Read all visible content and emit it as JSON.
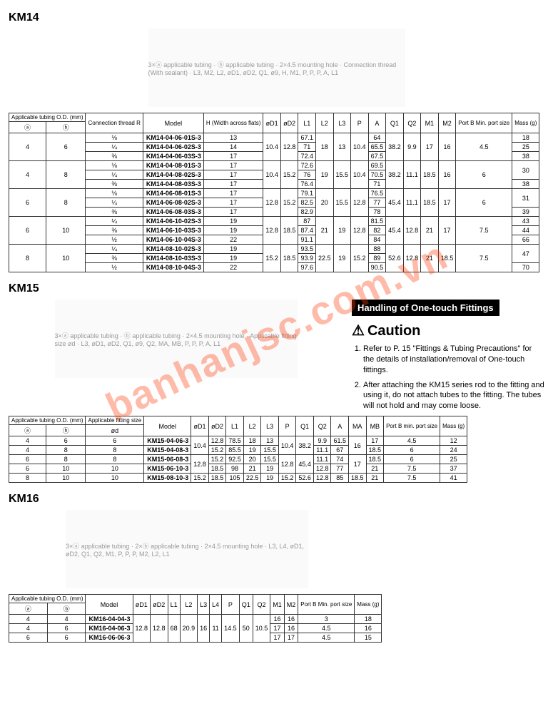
{
  "watermark": "banhanjsc.com.vn",
  "km14": {
    "title": "KM14",
    "diagram_labels": "3×ⓐ applicable tubing · ⓑ applicable tubing · 2×4.5 mounting hole · Connection thread (With sealant) · L3, M2, L2, øD1, øD2, Q1, ø9, H, M1, P, P, P, A, L1",
    "headers": {
      "tubing": "Applicable tubing O.D. (mm)",
      "a": "ⓐ",
      "b": "ⓑ",
      "conn": "Connection thread R",
      "model": "Model",
      "H": "H (Width across flats)",
      "D1": "øD1",
      "D2": "øD2",
      "L1": "L1",
      "L2": "L2",
      "L3": "L3",
      "P": "P",
      "A": "A",
      "Q1": "Q1",
      "Q2": "Q2",
      "M1": "M1",
      "M2": "M2",
      "portB": "Port B Min. port size",
      "mass": "Mass (g)"
    },
    "groups": [
      {
        "a": "4",
        "b": "6",
        "shared": {
          "D1": "10.4",
          "D2": "12.8",
          "L2": "18",
          "L3": "13",
          "P": "10.4",
          "Q1": "38.2",
          "Q2": "9.9",
          "M1": "17",
          "M2": "16",
          "portB": "4.5"
        },
        "rows": [
          {
            "conn": "⅛",
            "model": "KM14-04-06-01S-3",
            "H": "13",
            "L1": "67.1",
            "A": "64",
            "mass": "18"
          },
          {
            "conn": "¼",
            "model": "KM14-04-06-02S-3",
            "H": "14",
            "L1": "71",
            "A": "65.5",
            "mass": "25"
          },
          {
            "conn": "⅜",
            "model": "KM14-04-06-03S-3",
            "H": "17",
            "L1": "72.4",
            "A": "67.5",
            "mass": "38"
          }
        ]
      },
      {
        "a": "4",
        "b": "8",
        "shared": {
          "D1": "10.4",
          "D2": "15.2",
          "L2": "19",
          "L3": "15.5",
          "P": "10.4",
          "Q1": "38.2",
          "Q2": "11.1",
          "M1": "18.5",
          "M2": "16",
          "portB": "6"
        },
        "rows": [
          {
            "conn": "⅛",
            "model": "KM14-04-08-01S-3",
            "H": "17",
            "L1": "72.6",
            "A": "69.5",
            "mass": "30",
            "mass_span": 2
          },
          {
            "conn": "¼",
            "model": "KM14-04-08-02S-3",
            "H": "17",
            "L1": "76",
            "A": "70.5"
          },
          {
            "conn": "⅜",
            "model": "KM14-04-08-03S-3",
            "H": "17",
            "L1": "76.4",
            "A": "71",
            "mass": "38"
          }
        ]
      },
      {
        "a": "6",
        "b": "8",
        "shared": {
          "D1": "12.8",
          "D2": "15.2",
          "L2": "20",
          "L3": "15.5",
          "P": "12.8",
          "Q1": "45.4",
          "Q2": "11.1",
          "M1": "18.5",
          "M2": "17",
          "portB": "6"
        },
        "rows": [
          {
            "conn": "⅛",
            "model": "KM14-06-08-01S-3",
            "H": "17",
            "L1": "79.1",
            "A": "76.5",
            "mass": "31",
            "mass_span": 2
          },
          {
            "conn": "¼",
            "model": "KM14-06-08-02S-3",
            "H": "17",
            "L1": "82.5",
            "A": "77"
          },
          {
            "conn": "⅜",
            "model": "KM14-06-08-03S-3",
            "H": "17",
            "L1": "82.9",
            "A": "78",
            "mass": "39"
          }
        ]
      },
      {
        "a": "6",
        "b": "10",
        "shared": {
          "D1": "12.8",
          "D2": "18.5",
          "L2": "21",
          "L3": "19",
          "P": "12.8",
          "Q1": "45.4",
          "Q2": "12.8",
          "M1": "21",
          "M2": "17",
          "portB": "7.5"
        },
        "rows": [
          {
            "conn": "¼",
            "model": "KM14-06-10-02S-3",
            "H": "19",
            "L1": "87",
            "A": "81.5",
            "mass": "43"
          },
          {
            "conn": "⅜",
            "model": "KM14-06-10-03S-3",
            "H": "19",
            "L1": "87.4",
            "A": "82",
            "mass": "44"
          },
          {
            "conn": "½",
            "model": "KM14-06-10-04S-3",
            "H": "22",
            "L1": "91.1",
            "A": "84",
            "mass": "66"
          }
        ]
      },
      {
        "a": "8",
        "b": "10",
        "shared": {
          "D1": "15.2",
          "D2": "18.5",
          "L2": "22.5",
          "L3": "19",
          "P": "15.2",
          "Q1": "52.6",
          "Q2": "12.8",
          "M1": "21",
          "M2": "18.5",
          "portB": "7.5"
        },
        "rows": [
          {
            "conn": "¼",
            "model": "KM14-08-10-02S-3",
            "H": "19",
            "L1": "93.5",
            "A": "88",
            "mass": "47",
            "mass_span": 2
          },
          {
            "conn": "⅜",
            "model": "KM14-08-10-03S-3",
            "H": "19",
            "L1": "93.9",
            "A": "89"
          },
          {
            "conn": "½",
            "model": "KM14-08-10-04S-3",
            "H": "22",
            "L1": "97.6",
            "A": "90.5",
            "mass": "70"
          }
        ]
      }
    ]
  },
  "km15": {
    "title": "KM15",
    "diagram_labels": "3×ⓐ applicable tubing · ⓑ applicable tubing · 2×4.5 mounting hole · Applicable fitting size ød · L3, øD1, øD2, Q1, ø9, Q2, MA, MB, P, P, P, A, L1",
    "headers": {
      "tubing": "Applicable tubing O.D. (mm)",
      "fit": "Applicable fitting size",
      "a": "ⓐ",
      "b": "ⓑ",
      "od": "ød",
      "model": "Model",
      "D1": "øD1",
      "D2": "øD2",
      "L1": "L1",
      "L2": "L2",
      "L3": "L3",
      "P": "P",
      "Q1": "Q1",
      "Q2": "Q2",
      "A": "A",
      "MA": "MA",
      "MB": "MB",
      "portB": "Port B min. port size",
      "mass": "Mass (g)"
    },
    "rows": [
      {
        "a": "4",
        "b": "6",
        "od": "6",
        "model": "KM15-04-06-3",
        "D1": "10.4",
        "D2": "12.8",
        "L1": "78.5",
        "L2": "18",
        "L3": "13",
        "P": "10.4",
        "Q1": "38.2",
        "Q2": "9.9",
        "A": "61.5",
        "MA": "16",
        "MB": "17",
        "portB": "4.5",
        "mass": "12",
        "d1_span": 2,
        "p_span": 2,
        "q1_span": 2,
        "ma_span": 2
      },
      {
        "a": "4",
        "b": "8",
        "od": "8",
        "model": "KM15-04-08-3",
        "D2": "15.2",
        "L1": "85.5",
        "L2": "19",
        "L3": "15.5",
        "Q2": "11.1",
        "A": "67",
        "MB": "18.5",
        "portB": "6",
        "mass": "24"
      },
      {
        "a": "6",
        "b": "8",
        "od": "8",
        "model": "KM15-06-08-3",
        "D1": "12.8",
        "D2": "15.2",
        "L1": "92.5",
        "L2": "20",
        "L3": "15.5",
        "P": "12.8",
        "Q1": "45.4",
        "Q2": "11.1",
        "A": "74",
        "MA": "17",
        "MB": "18.5",
        "portB": "6",
        "mass": "25",
        "d1_span": 2,
        "p_span": 2,
        "q1_span": 2,
        "ma_span": 2
      },
      {
        "a": "6",
        "b": "10",
        "od": "10",
        "model": "KM15-06-10-3",
        "D2": "18.5",
        "L1": "98",
        "L2": "21",
        "L3": "19",
        "Q2": "12.8",
        "A": "77",
        "MB": "21",
        "portB": "7.5",
        "mass": "37"
      },
      {
        "a": "8",
        "b": "10",
        "od": "10",
        "model": "KM15-08-10-3",
        "D1": "15.2",
        "D2": "18.5",
        "L1": "105",
        "L2": "22.5",
        "L3": "19",
        "P": "15.2",
        "Q1": "52.6",
        "Q2": "12.8",
        "A": "85",
        "MA": "18.5",
        "MB": "21",
        "portB": "7.5",
        "mass": "41"
      }
    ]
  },
  "km16": {
    "title": "KM16",
    "diagram_labels": "3×ⓐ applicable tubing · 2×ⓑ applicable tubing · 2×4.5 mounting hole · L3, L4, øD1, øD2, Q1, Q2, M1, P, P, P, M2, L2, L1",
    "headers": {
      "tubing": "Applicable tubing O.D. (mm)",
      "a": "ⓐ",
      "b": "ⓑ",
      "model": "Model",
      "D1": "øD1",
      "D2": "øD2",
      "L1": "L1",
      "L2": "L2",
      "L3": "L3",
      "L4": "L4",
      "P": "P",
      "Q1": "Q1",
      "Q2": "Q2",
      "M1": "M1",
      "M2": "M2",
      "portB": "Port B Min. port size",
      "mass": "Mass (g)"
    },
    "shared": {
      "D1": "12.8",
      "D2": "12.8",
      "L1": "68",
      "L2": "20.9",
      "L3": "16",
      "L4": "11",
      "P": "14.5",
      "Q1": "50",
      "Q2": "10.5"
    },
    "rows": [
      {
        "a": "4",
        "b": "4",
        "model": "KM16-04-04-3",
        "M1": "16",
        "M2": "16",
        "portB": "3",
        "mass": "18"
      },
      {
        "a": "4",
        "b": "6",
        "model": "KM16-04-06-3",
        "M1": "17",
        "M2": "16",
        "portB": "4.5",
        "mass": "16"
      },
      {
        "a": "6",
        "b": "6",
        "model": "KM16-06-06-3",
        "M1": "17",
        "M2": "17",
        "portB": "4.5",
        "mass": "15"
      }
    ]
  },
  "handling": {
    "title": "Handling of One-touch Fittings",
    "caution": "Caution",
    "items": [
      "Refer to P. 15 \"Fittings & Tubing Precautions\" for the details of installation/removal of One-touch fittings.",
      "After attaching the KM15 series rod to the fitting and using it, do not attach tubes to the fitting. The tubes will not hold and may come loose."
    ]
  }
}
